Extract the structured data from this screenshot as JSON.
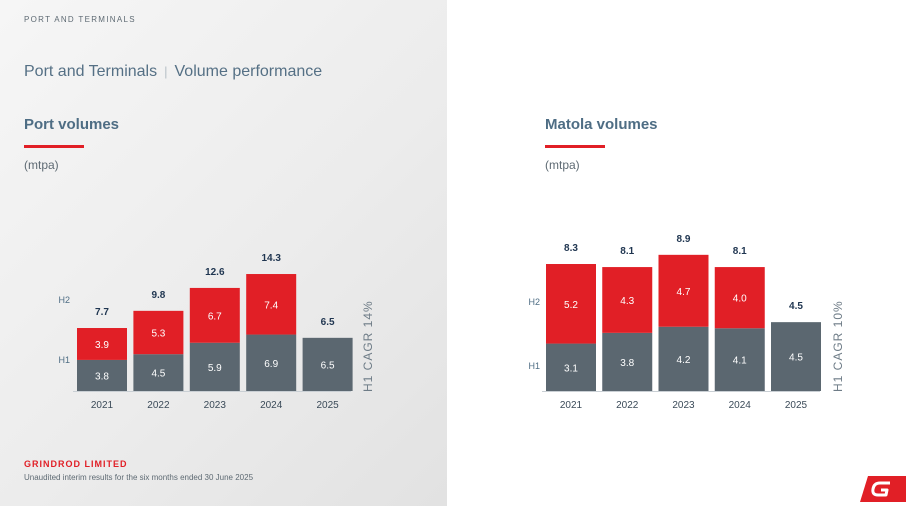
{
  "section_tag": "PORT AND TERMINALS",
  "page_title": {
    "main": "Port and Terminals",
    "separator": "|",
    "sub": "Volume performance"
  },
  "footer": {
    "company": "GRINDROD LIMITED",
    "note": "Unaudited interim results for the six months ended 30 June 2025"
  },
  "colors": {
    "h1": "#5b6770",
    "h2": "#e11f26",
    "title": "#4e6d84",
    "accent": "#e11f26"
  },
  "chart_data": [
    {
      "type": "bar",
      "stacked": true,
      "title": "Port volumes",
      "unit": "(mtpa)",
      "categories": [
        "2021",
        "2022",
        "2023",
        "2024",
        "2025"
      ],
      "series": [
        {
          "name": "H1",
          "values": [
            3.8,
            4.5,
            5.9,
            6.9,
            6.5
          ],
          "labels": [
            "3.8",
            "4.5",
            "5.9",
            "6.9",
            "6.5"
          ]
        },
        {
          "name": "H2",
          "values": [
            3.9,
            5.3,
            6.7,
            7.4,
            null
          ],
          "labels": [
            "3.9",
            "5.3",
            "6.7",
            "7.4",
            ""
          ]
        }
      ],
      "totals": [
        "7.7",
        "9.8",
        "12.6",
        "14.3",
        "6.5"
      ],
      "annotation": "H1 CAGR 14%"
    },
    {
      "type": "bar",
      "stacked": true,
      "title": "Matola volumes",
      "unit": "(mtpa)",
      "categories": [
        "2021",
        "2022",
        "2023",
        "2024",
        "2025"
      ],
      "series": [
        {
          "name": "H1",
          "values": [
            3.1,
            3.8,
            4.2,
            4.1,
            4.5
          ],
          "labels": [
            "3.1",
            "3.8",
            "4.2",
            "4.1",
            "4.5"
          ]
        },
        {
          "name": "H2",
          "values": [
            5.2,
            4.3,
            4.7,
            4.0,
            null
          ],
          "labels": [
            "5.2",
            "4.3",
            "4.7",
            "4.0",
            ""
          ]
        }
      ],
      "totals": [
        "8.3",
        "8.1",
        "8.9",
        "8.1",
        "4.5"
      ],
      "annotation": "H1 CAGR 10%"
    }
  ]
}
